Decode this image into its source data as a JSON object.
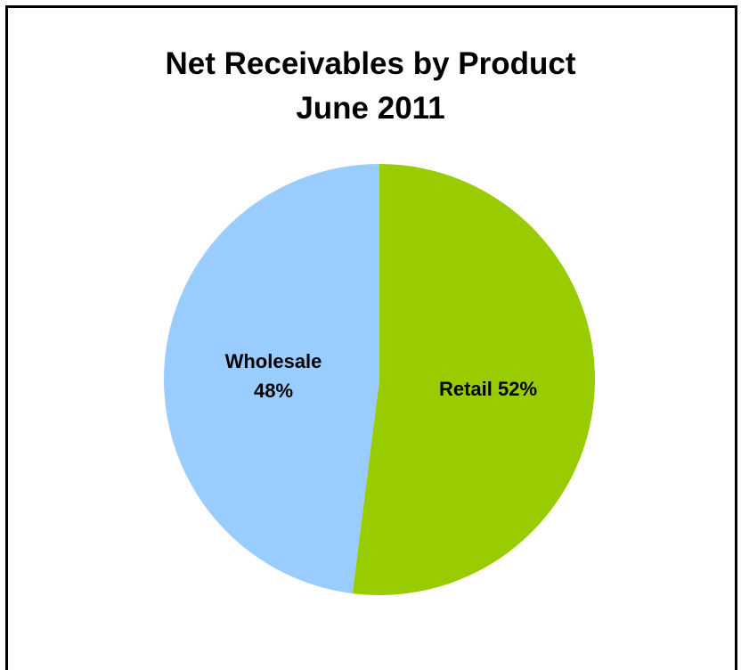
{
  "chart_data": {
    "type": "pie",
    "title": "Net Receivables by Product",
    "subtitle": "June 2011",
    "slices": [
      {
        "name": "Retail",
        "value": 52,
        "label_line1": "Retail 52%",
        "label_line2": "",
        "color": "#99cc00"
      },
      {
        "name": "Wholesale",
        "value": 48,
        "label_line1": "Wholesale",
        "label_line2": "48%",
        "color": "#99ccff"
      }
    ],
    "start_angle_deg": 0,
    "direction": "clockwise"
  }
}
